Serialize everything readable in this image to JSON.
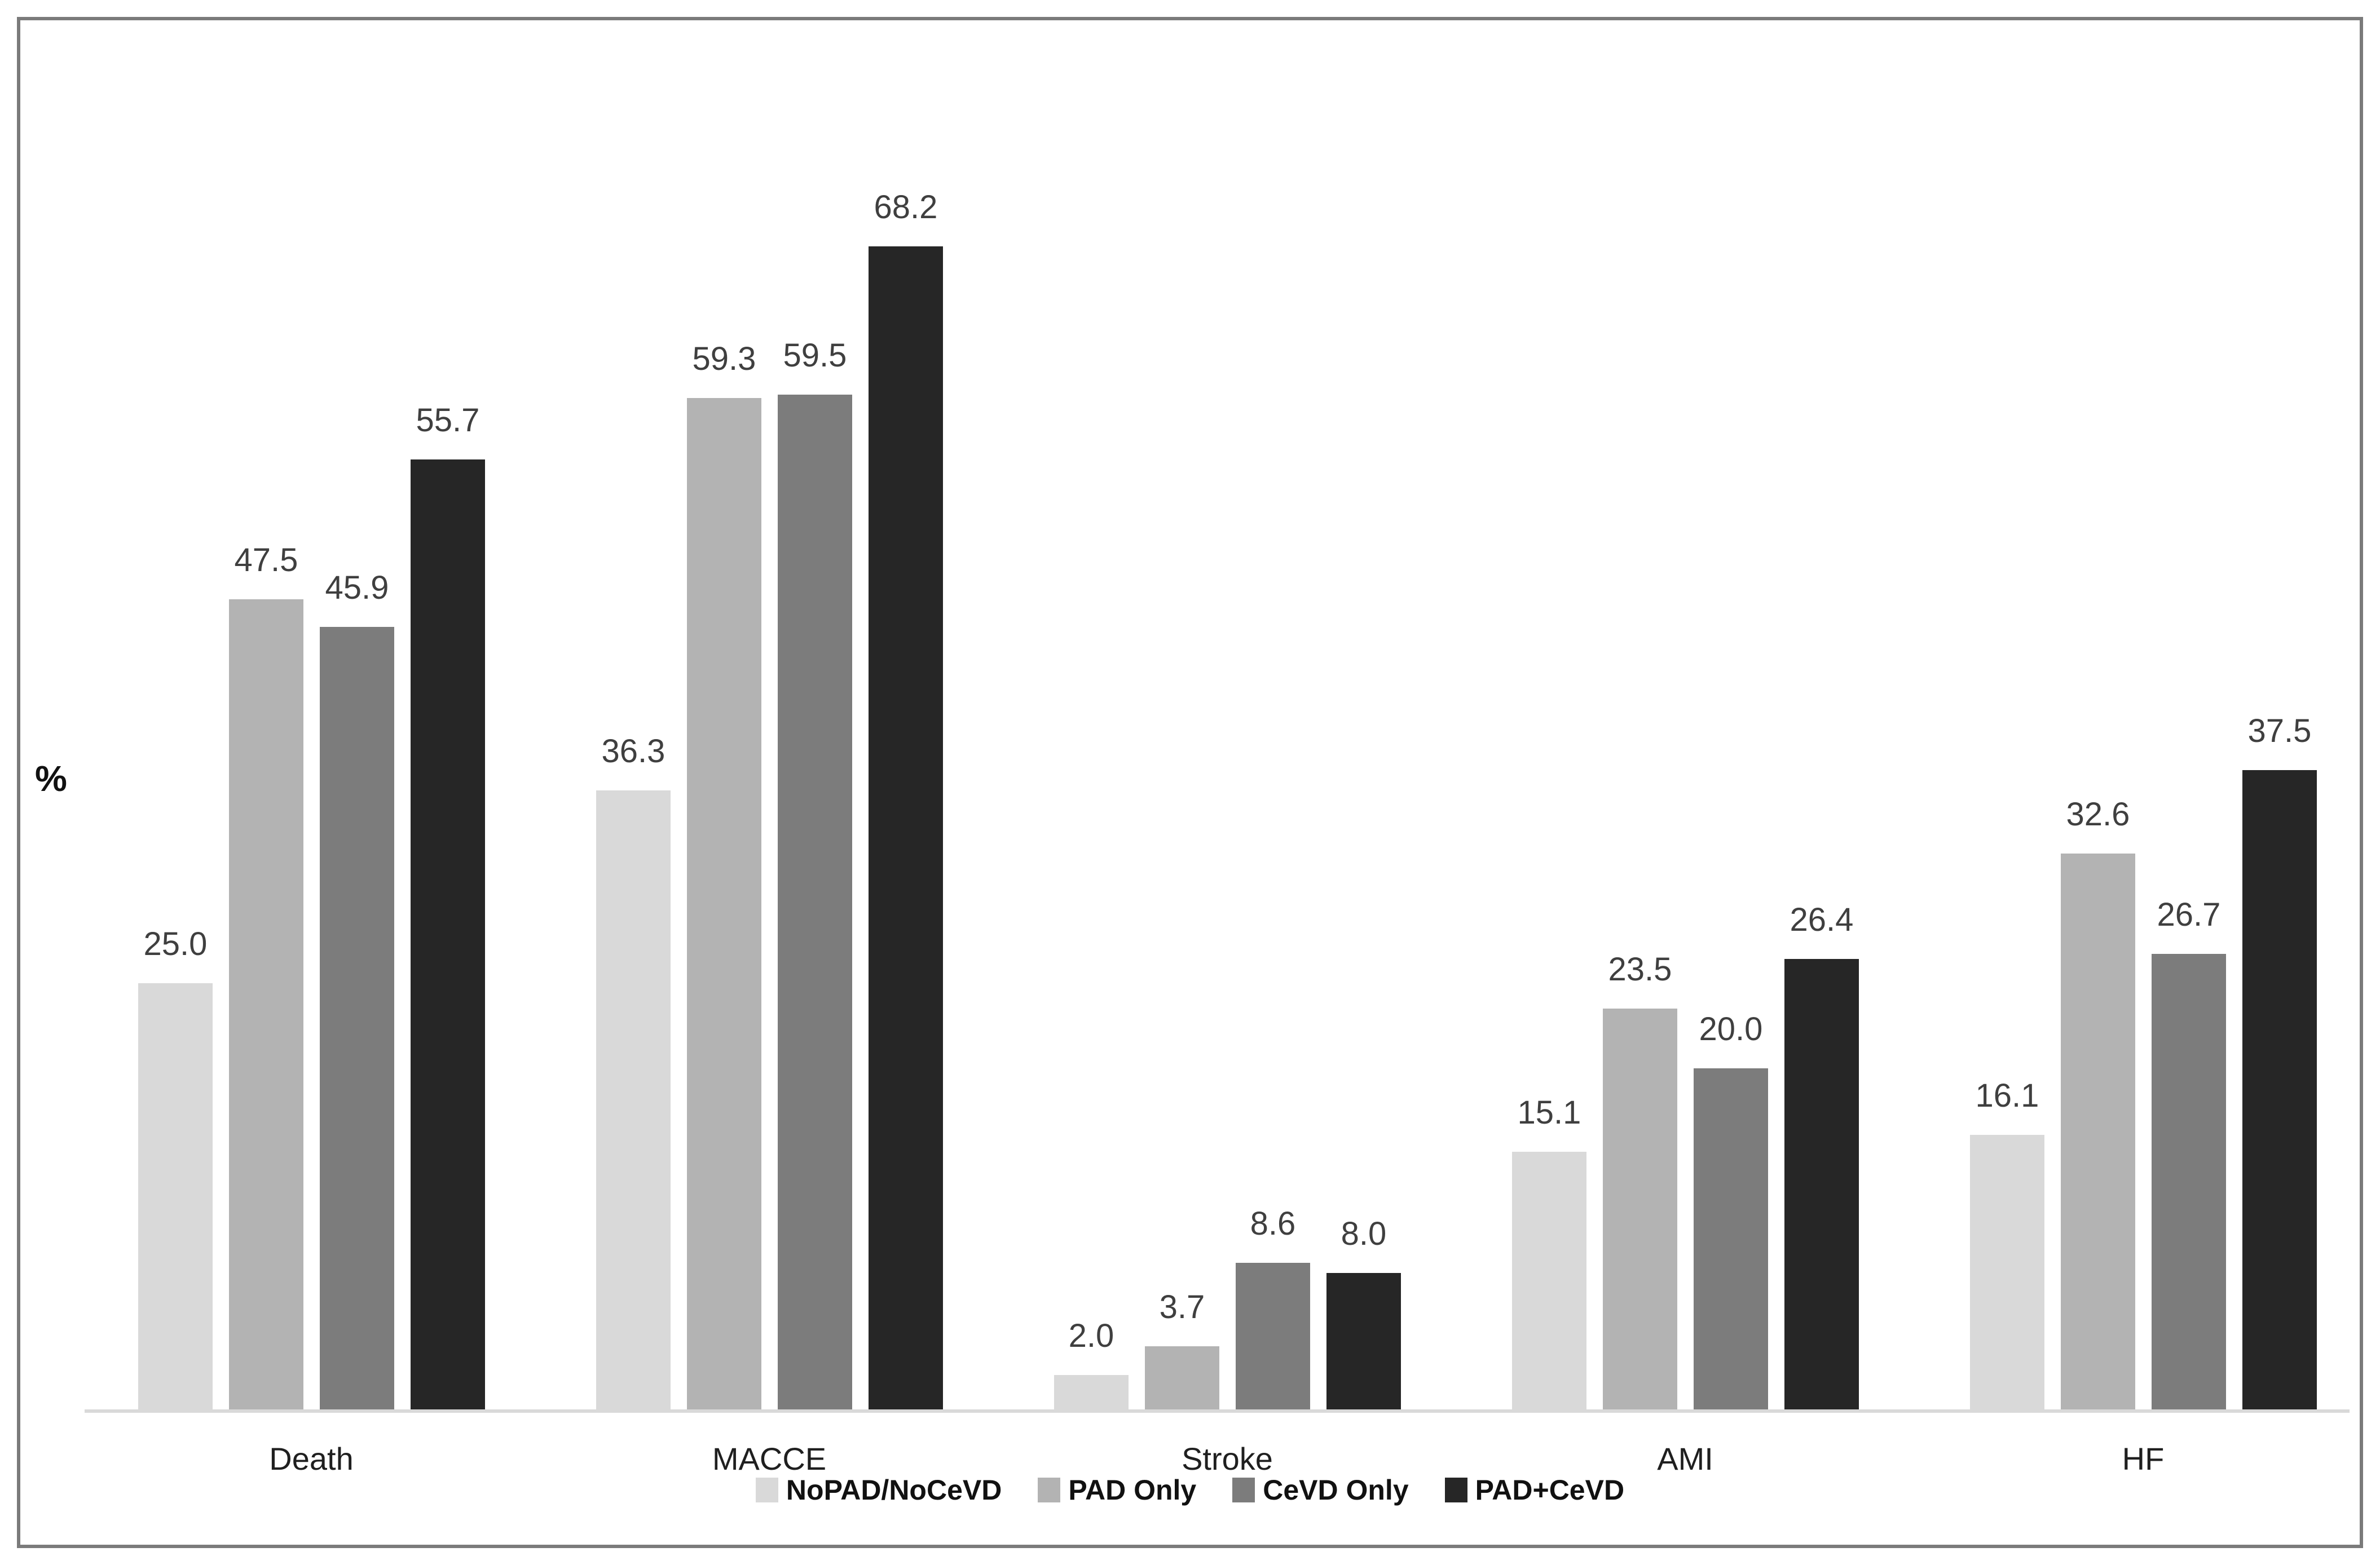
{
  "chart_data": {
    "type": "bar",
    "title": "",
    "xlabel": "",
    "ylabel": "%",
    "categories": [
      "Death",
      "MACCE",
      "Stroke",
      "AMI",
      "HF"
    ],
    "series": [
      {
        "name": "NoPAD/NoCeVD",
        "color": "#d9d9d9",
        "values": [
          25.0,
          36.3,
          2.0,
          15.1,
          16.1
        ]
      },
      {
        "name": "PAD Only",
        "color": "#b3b3b3",
        "values": [
          47.5,
          59.3,
          3.7,
          23.5,
          32.6
        ]
      },
      {
        "name": "CeVD Only",
        "color": "#7c7c7c",
        "values": [
          45.9,
          59.5,
          8.6,
          20.0,
          26.7
        ]
      },
      {
        "name": "PAD+CeVD",
        "color": "#262626",
        "values": [
          55.7,
          68.2,
          8.0,
          26.4,
          37.5
        ]
      }
    ],
    "value_labels_shown": true,
    "value_label_decimals": 1,
    "value_label_color": "#3f3f3f",
    "axis_line_color": "#d9d9d9",
    "ylim": [
      0,
      81
    ],
    "grid": false,
    "legend_position": "bottom"
  }
}
